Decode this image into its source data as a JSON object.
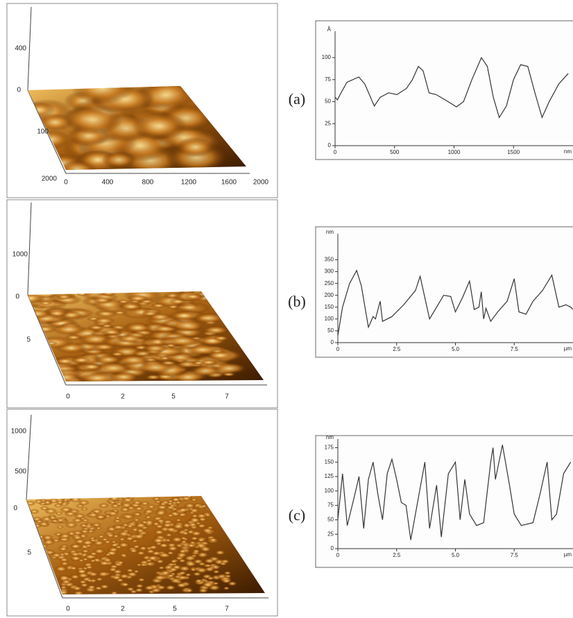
{
  "chart_data": [
    {
      "type": "line",
      "panel_label": "(a)",
      "ylabel": "Å",
      "xlabel": "nm",
      "x": [
        0,
        20,
        50,
        100,
        200,
        250,
        330,
        380,
        450,
        520,
        600,
        650,
        700,
        740,
        790,
        850,
        950,
        1020,
        1080,
        1150,
        1230,
        1280,
        1330,
        1380,
        1440,
        1500,
        1560,
        1620,
        1680,
        1740,
        1800,
        1880,
        1960
      ],
      "values": [
        55,
        52,
        60,
        72,
        78,
        70,
        45,
        55,
        60,
        58,
        65,
        75,
        90,
        85,
        60,
        58,
        50,
        44,
        50,
        75,
        100,
        90,
        55,
        32,
        45,
        75,
        92,
        90,
        60,
        32,
        50,
        70,
        82
      ],
      "color": "#333333",
      "xlim": [
        0,
        2000
      ],
      "ylim": [
        0,
        130
      ],
      "xticks": [
        0,
        500,
        1000,
        1500
      ],
      "yticks": [
        0,
        25,
        50,
        75,
        100
      ]
    },
    {
      "type": "line",
      "panel_label": "(b)",
      "ylabel": "nm",
      "xlabel": "µm",
      "x": [
        0,
        0.2,
        0.5,
        0.8,
        1.0,
        1.3,
        1.5,
        1.6,
        1.8,
        1.9,
        2.3,
        2.8,
        3.3,
        3.5,
        3.9,
        4.2,
        4.5,
        4.8,
        5.0,
        5.3,
        5.6,
        5.8,
        6.0,
        6.1,
        6.2,
        6.3,
        6.5,
        6.8,
        7.2,
        7.5,
        7.7,
        8.0,
        8.3,
        8.7,
        9.1,
        9.4,
        9.7,
        9.9,
        10
      ],
      "values": [
        30,
        150,
        250,
        305,
        240,
        65,
        110,
        100,
        175,
        90,
        110,
        160,
        220,
        280,
        100,
        150,
        200,
        195,
        130,
        190,
        260,
        140,
        150,
        215,
        100,
        145,
        90,
        130,
        175,
        270,
        130,
        120,
        175,
        220,
        285,
        150,
        160,
        150,
        140
      ],
      "color": "#333333",
      "xlim": [
        0,
        10
      ],
      "ylim": [
        0,
        460
      ],
      "xticks": [
        0,
        2.5,
        {
          "value": 5,
          "label": "5.0"
        },
        7.5
      ],
      "yticks": [
        0,
        50,
        100,
        150,
        200,
        250,
        300,
        350
      ]
    },
    {
      "type": "line",
      "panel_label": "(c)",
      "ylabel": "nm",
      "xlabel": "µm",
      "x": [
        0,
        0.2,
        0.4,
        0.7,
        0.9,
        1.1,
        1.3,
        1.5,
        1.7,
        1.9,
        2.1,
        2.3,
        2.5,
        2.7,
        2.9,
        3.1,
        3.3,
        3.7,
        3.9,
        4.2,
        4.4,
        4.7,
        5.0,
        5.2,
        5.4,
        5.6,
        5.9,
        6.2,
        6.5,
        6.6,
        6.7,
        7.0,
        7.3,
        7.5,
        7.8,
        8.3,
        8.6,
        8.9,
        9.1,
        9.3,
        9.6,
        9.9
      ],
      "values": [
        50,
        130,
        40,
        90,
        125,
        35,
        120,
        150,
        95,
        50,
        130,
        155,
        120,
        80,
        75,
        15,
        60,
        150,
        35,
        110,
        20,
        130,
        150,
        50,
        120,
        60,
        40,
        45,
        150,
        175,
        120,
        180,
        110,
        60,
        40,
        45,
        95,
        150,
        50,
        60,
        130,
        150
      ],
      "color": "#333333",
      "xlim": [
        0,
        10
      ],
      "ylim": [
        0,
        190
      ],
      "xticks": [
        0,
        2.5,
        {
          "value": 5,
          "label": "5.0"
        },
        7.5
      ],
      "yticks": [
        0,
        25,
        50,
        75,
        100,
        125,
        150,
        175
      ]
    }
  ],
  "afm_images": [
    {
      "z_ticks": [
        400,
        0
      ],
      "depth_ticks": [
        100,
        2000
      ],
      "x_ticks": [
        0,
        400,
        800,
        1200,
        1600,
        2000
      ]
    },
    {
      "z_ticks": [
        1000,
        0
      ],
      "depth_ticks": [
        5
      ],
      "x_ticks": [
        0,
        2,
        5,
        7
      ]
    },
    {
      "z_ticks": [
        1000,
        500,
        0
      ],
      "depth_ticks": [
        5
      ],
      "x_ticks": [
        0,
        2,
        5,
        7
      ]
    }
  ]
}
